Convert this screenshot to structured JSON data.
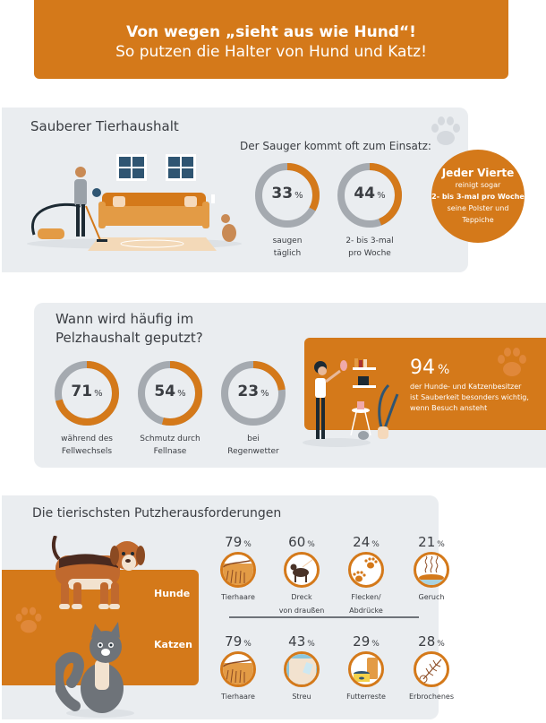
{
  "header": {
    "title": "Von wegen „sieht aus wie Hund“!",
    "subtitle": "So putzen die Halter von Hund und Katz!"
  },
  "colors": {
    "accent": "#d4791a",
    "ring_gray": "#a5aab0",
    "panel": "#eaedf0",
    "text": "#3a3d42"
  },
  "section1": {
    "title": "Sauberer Tierhaushalt",
    "chart_title": "Der Sauger kommt oft zum Einsatz:",
    "bubble": {
      "headline": "Jeder Vierte",
      "line1": "reinigt sogar",
      "line2": "2- bis 3-mal pro Woche",
      "line3": "seine Polster und",
      "line4": "Teppiche"
    }
  },
  "section2": {
    "title_line1": "Wann wird häufig im",
    "title_line2": "Pelzhaushalt geputzt?",
    "highlight": {
      "value": "94",
      "unit": "%",
      "line1": "der Hunde- und Katzenbesitzer",
      "line2": "ist Sauberkeit besonders wichtig,",
      "line3": "wenn Besuch ansteht"
    }
  },
  "section3": {
    "title": "Die tierischsten Putzherausforderungen",
    "row_labels": {
      "dogs": "Hunde",
      "cats": "Katzen"
    }
  },
  "chart_data": [
    {
      "type": "pie",
      "title": "Der Sauger kommt oft zum Einsatz:",
      "unit": "%",
      "series": [
        {
          "name": "saugen täglich",
          "label_line1": "saugen",
          "label_line2": "täglich",
          "value": 33
        },
        {
          "name": "2- bis 3-mal pro Woche",
          "label_line1": "2- bis 3-mal",
          "label_line2": "pro Woche",
          "value": 44
        }
      ]
    },
    {
      "type": "pie",
      "title": "Wann wird häufig im Pelzhaushalt geputzt?",
      "unit": "%",
      "series": [
        {
          "name": "während des Fellwechsels",
          "label_line1": "während des",
          "label_line2": "Fellwechsels",
          "value": 71
        },
        {
          "name": "Schmutz durch Fellnase",
          "label_line1": "Schmutz durch",
          "label_line2": "Fellnase",
          "value": 54
        },
        {
          "name": "bei Regenwetter",
          "label_line1": "bei",
          "label_line2": "Regenwetter",
          "value": 23
        }
      ]
    },
    {
      "type": "table",
      "title": "Die tierischsten Putzherausforderungen",
      "unit": "%",
      "rows": [
        {
          "name": "Hunde",
          "items": [
            {
              "label_line1": "Tierhaare",
              "label_line2": "",
              "value": 79,
              "icon": "hair-icon"
            },
            {
              "label_line1": "Dreck",
              "label_line2": "von draußen",
              "value": 60,
              "icon": "dog-walking-icon"
            },
            {
              "label_line1": "Flecken/",
              "label_line2": "Abdrücke",
              "value": 24,
              "icon": "pawprints-icon"
            },
            {
              "label_line1": "Geruch",
              "label_line2": "",
              "value": 21,
              "icon": "smell-icon"
            }
          ]
        },
        {
          "name": "Katzen",
          "items": [
            {
              "label_line1": "Tierhaare",
              "label_line2": "",
              "value": 79,
              "icon": "hair-icon"
            },
            {
              "label_line1": "Streu",
              "label_line2": "",
              "value": 43,
              "icon": "litter-icon"
            },
            {
              "label_line1": "Futterreste",
              "label_line2": "",
              "value": 29,
              "icon": "food-icon"
            },
            {
              "label_line1": "Erbrochenes",
              "label_line2": "",
              "value": 28,
              "icon": "fishbone-icon"
            }
          ]
        }
      ]
    }
  ]
}
